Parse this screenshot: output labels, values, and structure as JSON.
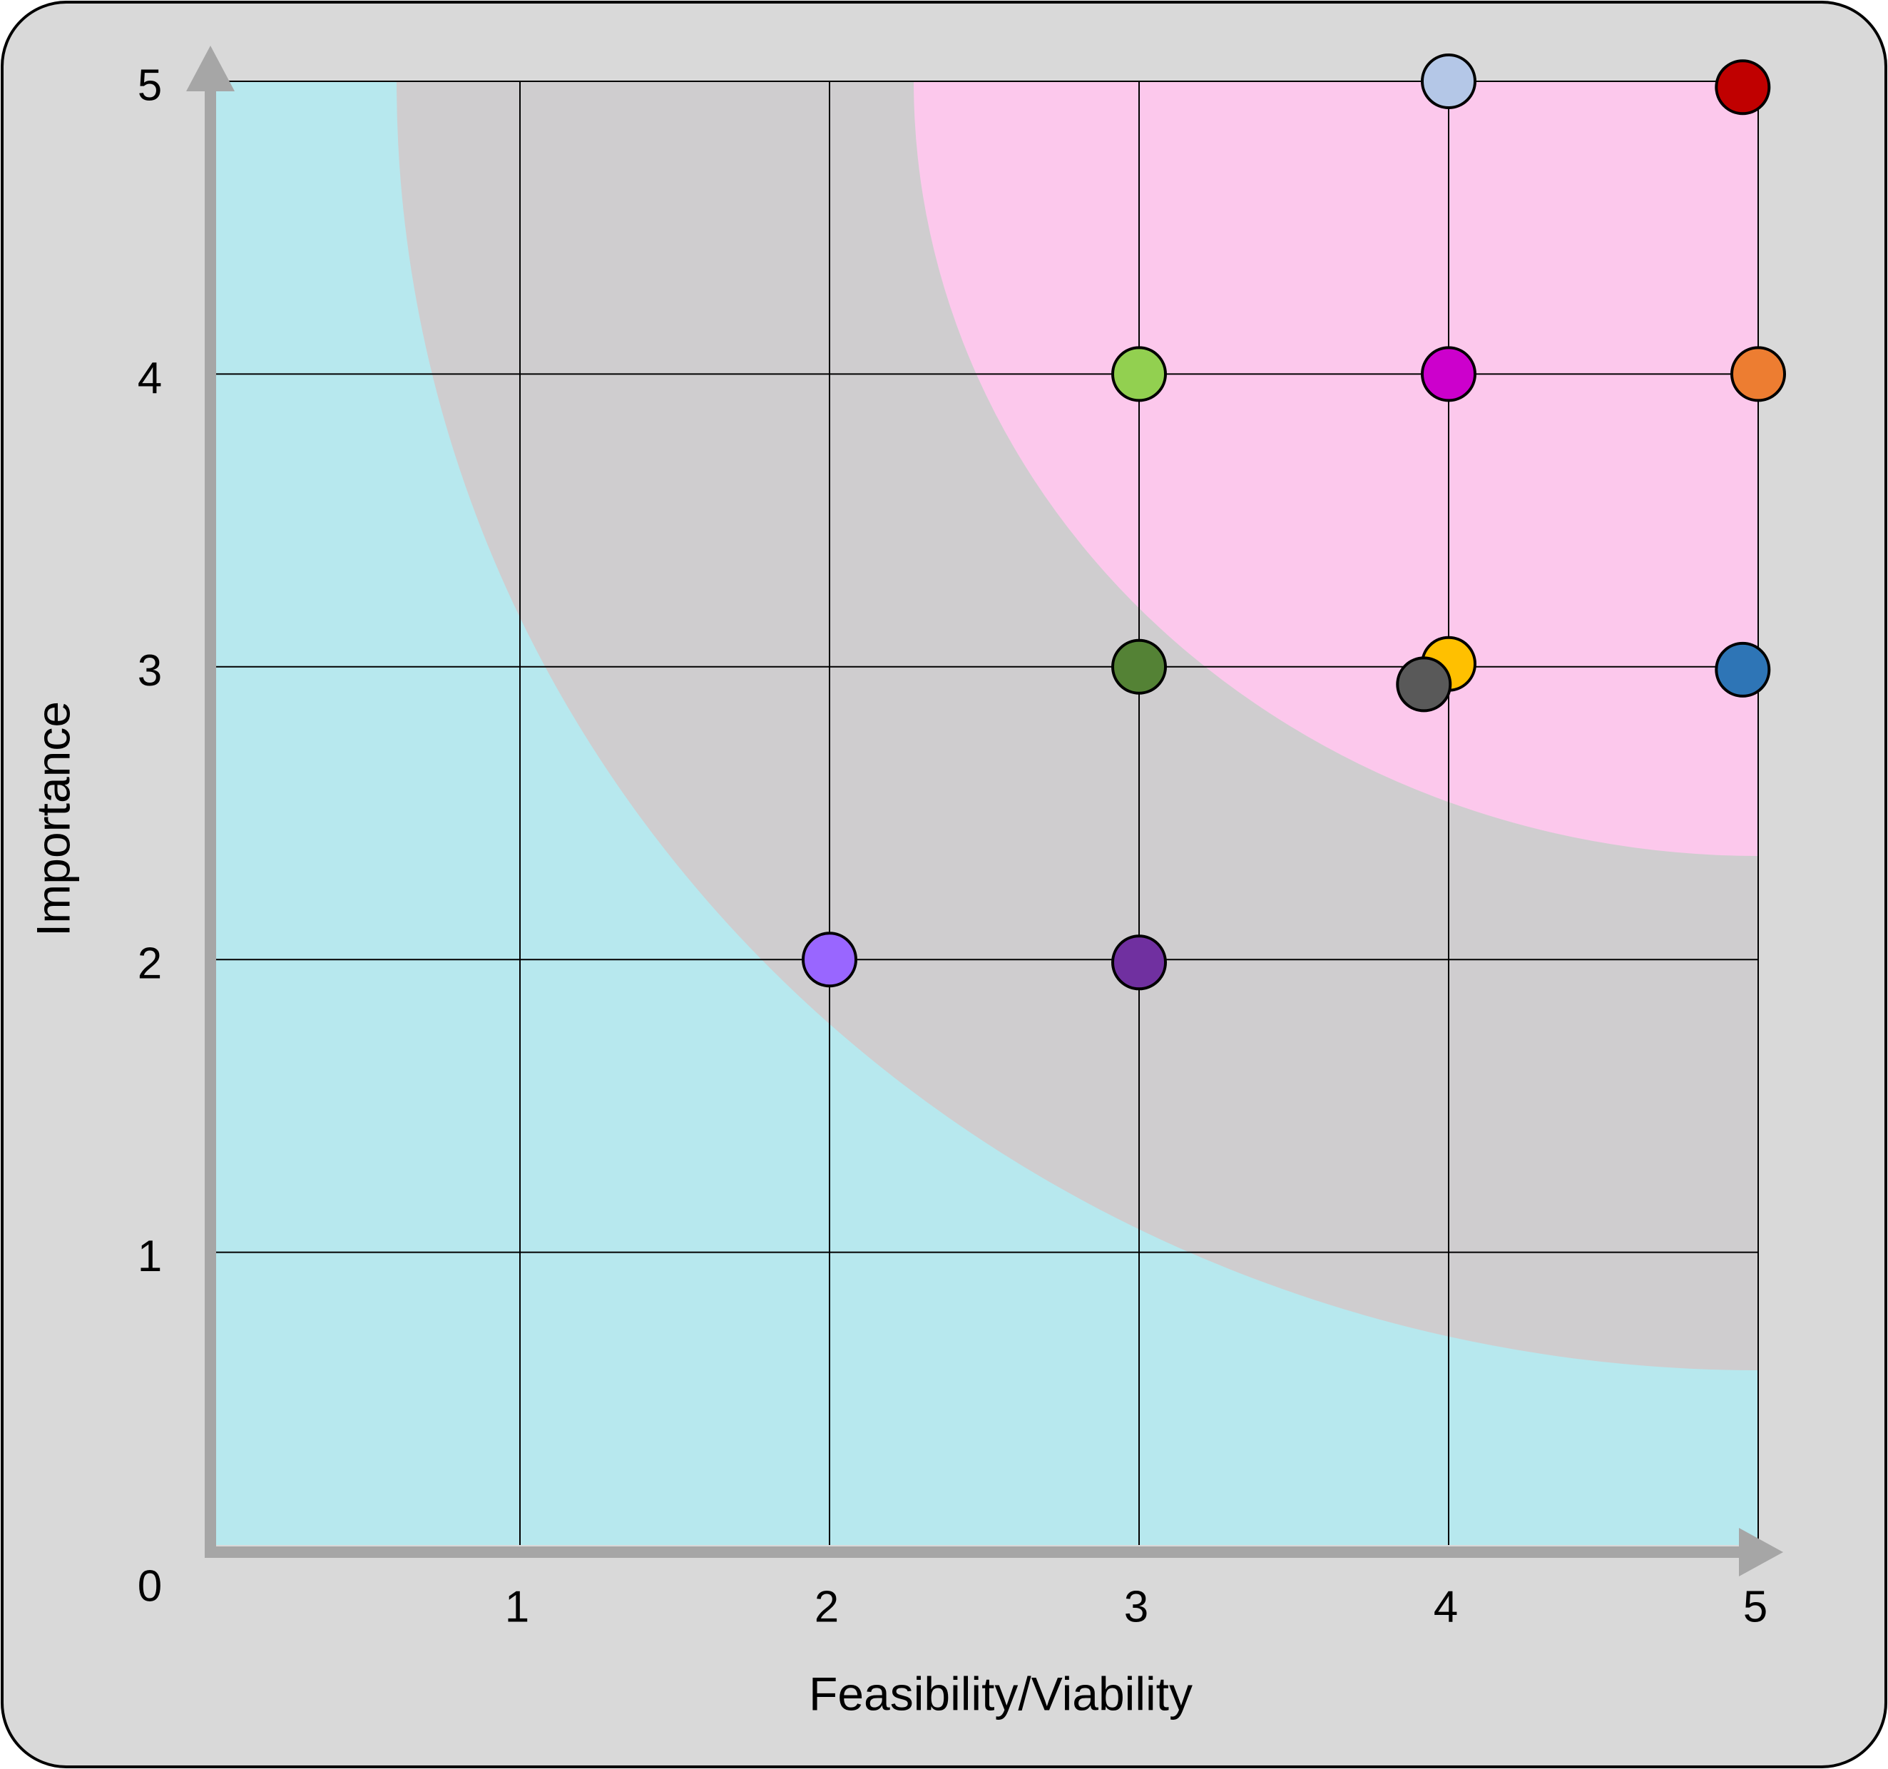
{
  "chart_data": {
    "type": "scatter",
    "xlabel": "Feasibility/Viability",
    "ylabel": "Importance",
    "xlim": [
      0,
      5
    ],
    "ylim": [
      0,
      5
    ],
    "x_ticks": [
      "1",
      "2",
      "3",
      "4",
      "5"
    ],
    "y_ticks": [
      "1",
      "2",
      "3",
      "4",
      "5"
    ],
    "origin_label": "0",
    "grid": true,
    "background_zones": [
      {
        "color": "#b7e8ee"
      },
      {
        "color": "#cfcdcf"
      },
      {
        "color": "#fcc8ec"
      }
    ],
    "points": [
      {
        "x": 4,
        "y": 5,
        "color": "#b4c7e7"
      },
      {
        "x": 4.95,
        "y": 4.98,
        "color": "#c00000"
      },
      {
        "x": 3,
        "y": 4,
        "color": "#92d050"
      },
      {
        "x": 4,
        "y": 4,
        "color": "#cc00cc"
      },
      {
        "x": 5,
        "y": 4,
        "color": "#ed7d31"
      },
      {
        "x": 3,
        "y": 3,
        "color": "#548235"
      },
      {
        "x": 4,
        "y": 3.01,
        "color": "#ffc000"
      },
      {
        "x": 3.92,
        "y": 2.94,
        "color": "#595959"
      },
      {
        "x": 4.95,
        "y": 2.99,
        "color": "#2e75b6"
      },
      {
        "x": 2,
        "y": 2,
        "color": "#9966ff"
      },
      {
        "x": 3,
        "y": 1.99,
        "color": "#7030a0"
      }
    ]
  }
}
